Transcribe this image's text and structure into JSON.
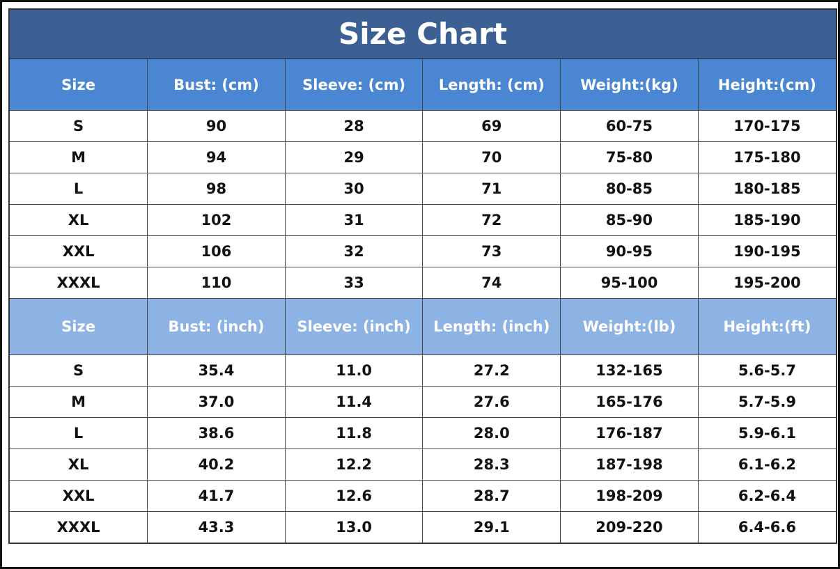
{
  "title": "Size Chart",
  "sections": [
    {
      "header": [
        "Size",
        "Bust: (cm)",
        "Sleeve: (cm)",
        "Length: (cm)",
        "Weight:(kg)",
        "Height:(cm)"
      ],
      "rows": [
        [
          "S",
          "90",
          "28",
          "69",
          "60-75",
          "170-175"
        ],
        [
          "M",
          "94",
          "29",
          "70",
          "75-80",
          "175-180"
        ],
        [
          "L",
          "98",
          "30",
          "71",
          "80-85",
          "180-185"
        ],
        [
          "XL",
          "102",
          "31",
          "72",
          "85-90",
          "185-190"
        ],
        [
          "XXL",
          "106",
          "32",
          "73",
          "90-95",
          "190-195"
        ],
        [
          "XXXL",
          "110",
          "33",
          "74",
          "95-100",
          "195-200"
        ]
      ]
    },
    {
      "header": [
        "Size",
        "Bust: (inch)",
        "Sleeve: (inch)",
        "Length: (inch)",
        "Weight:(lb)",
        "Height:(ft)"
      ],
      "rows": [
        [
          "S",
          "35.4",
          "11.0",
          "27.2",
          "132-165",
          "5.6-5.7"
        ],
        [
          "M",
          "37.0",
          "11.4",
          "27.6",
          "165-176",
          "5.7-5.9"
        ],
        [
          "L",
          "38.6",
          "11.8",
          "28.0",
          "176-187",
          "5.9-6.1"
        ],
        [
          "XL",
          "40.2",
          "12.2",
          "28.3",
          "187-198",
          "6.1-6.2"
        ],
        [
          "XXL",
          "41.7",
          "12.6",
          "28.7",
          "198-209",
          "6.2-6.4"
        ],
        [
          "XXXL",
          "43.3",
          "13.0",
          "29.1",
          "209-220",
          "6.4-6.6"
        ]
      ]
    }
  ]
}
